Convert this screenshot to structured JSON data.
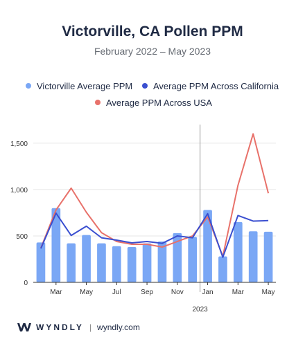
{
  "header": {
    "title": "Victorville, CA Pollen PPM",
    "subtitle": "February 2022 – May 2023"
  },
  "footer": {
    "brand": "WYNDLY",
    "separator": "|",
    "url": "wyndly.com"
  },
  "colors": {
    "bar": "#7aa7f5",
    "california": "#3a4fd0",
    "usa": "#e8716a",
    "axis": "#333333",
    "grid": "#e6e6e6",
    "divider": "#999999"
  },
  "chart_data": {
    "type": "bar",
    "title": "Victorville, CA Pollen PPM",
    "subtitle": "February 2022 – May 2023",
    "x": [
      "2022-02",
      "2022-03",
      "2022-04",
      "2022-05",
      "2022-06",
      "2022-07",
      "2022-08",
      "2022-09",
      "2022-10",
      "2022-11",
      "2022-12",
      "2023-01",
      "2023-02",
      "2023-03",
      "2023-04",
      "2023-05"
    ],
    "x_tick_labels": [
      "Mar",
      "May",
      "Jul",
      "Sep",
      "Nov",
      "Jan",
      "Mar",
      "May"
    ],
    "x_tick_months": [
      "2022-03",
      "2022-05",
      "2022-07",
      "2022-09",
      "2022-11",
      "2023-01",
      "2023-03",
      "2023-05"
    ],
    "year_label": "2023",
    "divider_at": "2023-01",
    "ylim": [
      0,
      1700
    ],
    "y_ticks": [
      0,
      500,
      1000,
      1500
    ],
    "y_tick_labels": [
      "0",
      "500",
      "1,000",
      "1,500"
    ],
    "grid": true,
    "legend_position": "top",
    "series": [
      {
        "name": "Victorville Average PPM",
        "kind": "bar",
        "values": [
          430,
          800,
          420,
          510,
          420,
          390,
          380,
          420,
          440,
          530,
          490,
          780,
          280,
          650,
          550,
          545
        ]
      },
      {
        "name": "Average PPM Across California",
        "kind": "line",
        "values": [
          365,
          745,
          505,
          605,
          480,
          455,
          425,
          440,
          420,
          500,
          480,
          740,
          270,
          720,
          660,
          665
        ]
      },
      {
        "name": "Average PPM Across USA",
        "kind": "line",
        "values": [
          370,
          780,
          1015,
          755,
          535,
          440,
          410,
          410,
          380,
          440,
          500,
          705,
          280,
          1045,
          1600,
          960
        ]
      }
    ]
  }
}
